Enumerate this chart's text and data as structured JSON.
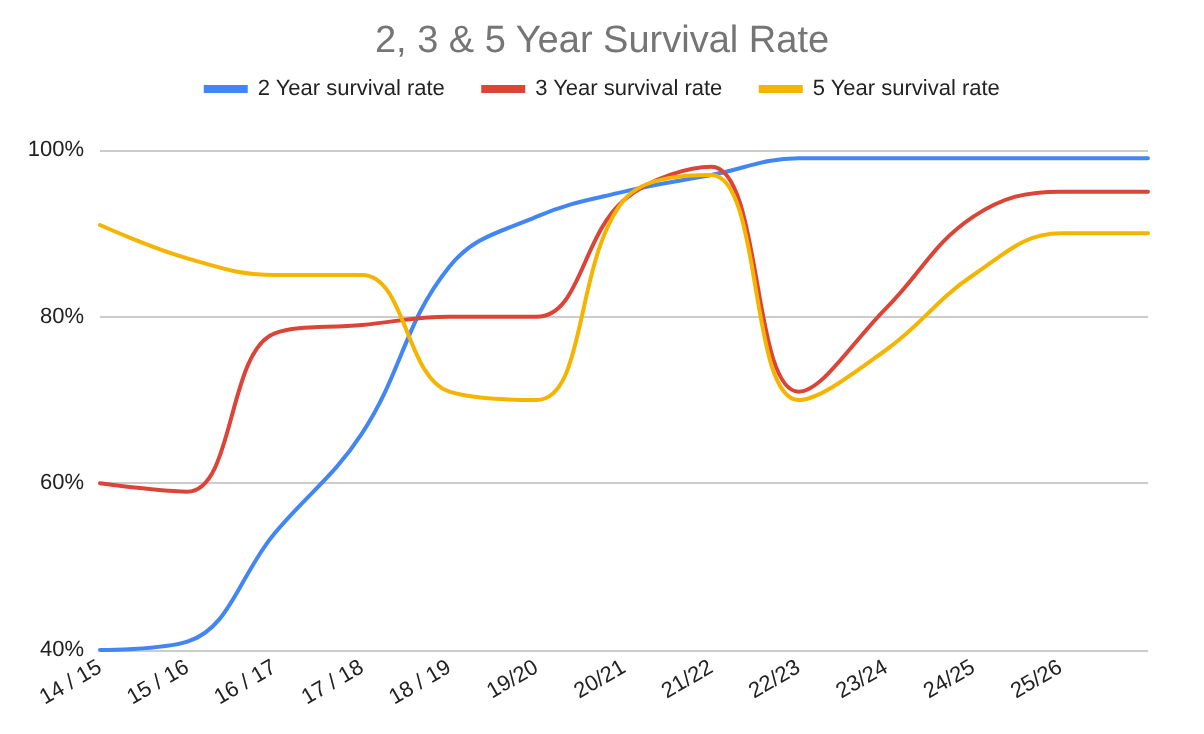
{
  "chart_data": {
    "type": "line",
    "title": "2, 3 & 5 Year Survival Rate",
    "categories": [
      "14 / 15",
      "15 / 16",
      "16 / 17",
      "17 / 18",
      "18 / 19",
      "19/20",
      "20/21",
      "21/22",
      "22/23",
      "23/24",
      "24/25",
      "25/26",
      null
    ],
    "series": [
      {
        "name": "2 Year survival rate",
        "color": "#4285f4",
        "values": [
          40,
          41,
          54,
          66,
          86,
          92,
          95,
          97,
          99,
          99,
          99,
          99,
          99
        ]
      },
      {
        "name": "3 Year survival rate",
        "color": "#db4437",
        "values": [
          60,
          59,
          78,
          79,
          80,
          80,
          94,
          98,
          71,
          81,
          92,
          95,
          95
        ]
      },
      {
        "name": "5 Year survival rate",
        "color": "#f4b400",
        "values": [
          91,
          87,
          85,
          85,
          71,
          70,
          94,
          97,
          70,
          76,
          85,
          90,
          90
        ]
      }
    ],
    "ylim": [
      40,
      100
    ],
    "yticks": [
      {
        "value": 40,
        "label": "40%"
      },
      {
        "value": 60,
        "label": "60%"
      },
      {
        "value": 80,
        "label": "80%"
      },
      {
        "value": 100,
        "label": "100%"
      }
    ],
    "grid": "y",
    "legend": "top",
    "marker": "none",
    "line_style": "solid"
  }
}
